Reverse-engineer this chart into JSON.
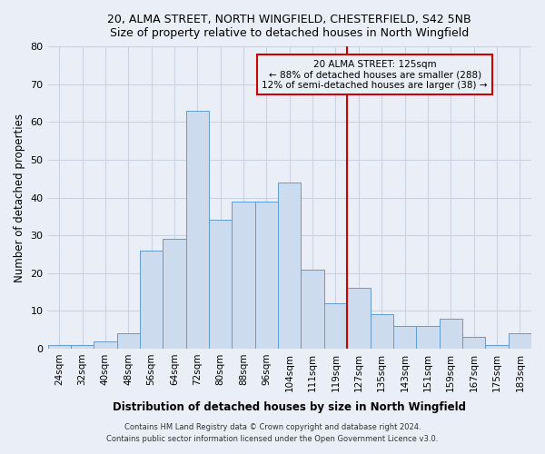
{
  "title1": "20, ALMA STREET, NORTH WINGFIELD, CHESTERFIELD, S42 5NB",
  "title2": "Size of property relative to detached houses in North Wingfield",
  "xlabel": "Distribution of detached houses by size in North Wingfield",
  "ylabel": "Number of detached properties",
  "categories": [
    "24sqm",
    "32sqm",
    "40sqm",
    "48sqm",
    "56sqm",
    "64sqm",
    "72sqm",
    "80sqm",
    "88sqm",
    "96sqm",
    "104sqm",
    "111sqm",
    "119sqm",
    "127sqm",
    "135sqm",
    "143sqm",
    "151sqm",
    "159sqm",
    "167sqm",
    "175sqm",
    "183sqm"
  ],
  "values": [
    1,
    1,
    2,
    4,
    26,
    29,
    63,
    34,
    39,
    39,
    44,
    21,
    12,
    16,
    9,
    6,
    6,
    8,
    3,
    1,
    4
  ],
  "bar_color": "#ccdcee",
  "bar_edge_color": "#6699cc",
  "grid_color": "#c8d4e4",
  "background_color": "#eaeff7",
  "vline_color": "#cc0000",
  "annotation_text": "20 ALMA STREET: 125sqm\n← 88% of detached houses are smaller (288)\n12% of semi-detached houses are larger (38) →",
  "annotation_box_edge_color": "#cc0000",
  "footer1": "Contains HM Land Registry data © Crown copyright and database right 2024.",
  "footer2": "Contains public sector information licensed under the Open Government Licence v3.0.",
  "ylim": [
    0,
    80
  ],
  "yticks": [
    0,
    10,
    20,
    30,
    40,
    50,
    60,
    70,
    80
  ]
}
